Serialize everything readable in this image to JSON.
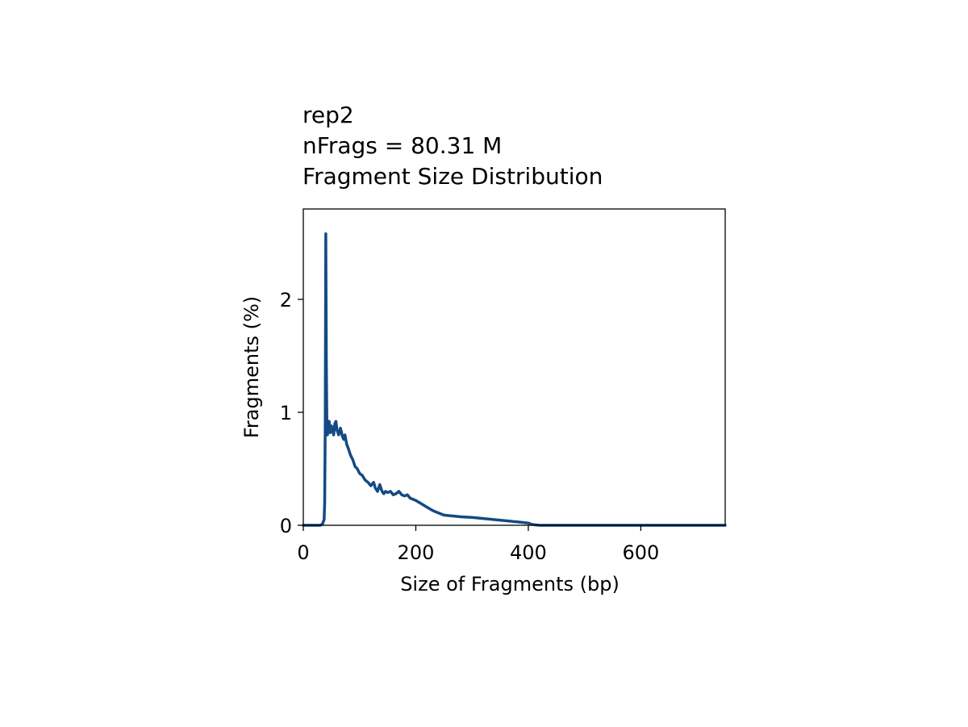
{
  "chart_data": {
    "type": "line",
    "title_lines": [
      "rep2",
      "nFrags = 80.31 M",
      "Fragment Size Distribution"
    ],
    "xlabel": "Size of Fragments (bp)",
    "ylabel": "Fragments (%)",
    "xlim": [
      0,
      750
    ],
    "ylim": [
      0,
      2.8
    ],
    "xticks": [
      0,
      200,
      400,
      600
    ],
    "yticks": [
      0,
      1,
      2
    ],
    "grid": false,
    "line_color": "#134a84",
    "series": [
      {
        "x": [
          0,
          30,
          34,
          37,
          38,
          39,
          40,
          41,
          42,
          43,
          44,
          46,
          48,
          50,
          52,
          54,
          56,
          58,
          60,
          63,
          66,
          68,
          70,
          72,
          74,
          77,
          80,
          84,
          88,
          92,
          96,
          100,
          105,
          110,
          115,
          120,
          125,
          128,
          132,
          136,
          140,
          143,
          146,
          150,
          155,
          160,
          165,
          170,
          175,
          180,
          185,
          190,
          200,
          210,
          220,
          230,
          240,
          250,
          260,
          270,
          280,
          290,
          300,
          320,
          340,
          360,
          380,
          400,
          405,
          410,
          420,
          500,
          600,
          750
        ],
        "y": [
          0,
          0,
          0.01,
          0.05,
          0.2,
          0.9,
          2.58,
          1.4,
          0.85,
          0.8,
          0.87,
          0.92,
          0.82,
          0.88,
          0.85,
          0.8,
          0.9,
          0.92,
          0.84,
          0.8,
          0.86,
          0.82,
          0.78,
          0.76,
          0.8,
          0.72,
          0.68,
          0.62,
          0.58,
          0.52,
          0.5,
          0.46,
          0.44,
          0.4,
          0.38,
          0.35,
          0.38,
          0.33,
          0.3,
          0.36,
          0.3,
          0.28,
          0.3,
          0.29,
          0.3,
          0.27,
          0.28,
          0.3,
          0.27,
          0.26,
          0.27,
          0.24,
          0.22,
          0.19,
          0.16,
          0.13,
          0.11,
          0.09,
          0.085,
          0.08,
          0.075,
          0.072,
          0.07,
          0.06,
          0.05,
          0.04,
          0.03,
          0.02,
          0.01,
          0.005,
          0,
          0,
          0,
          0
        ]
      }
    ]
  }
}
